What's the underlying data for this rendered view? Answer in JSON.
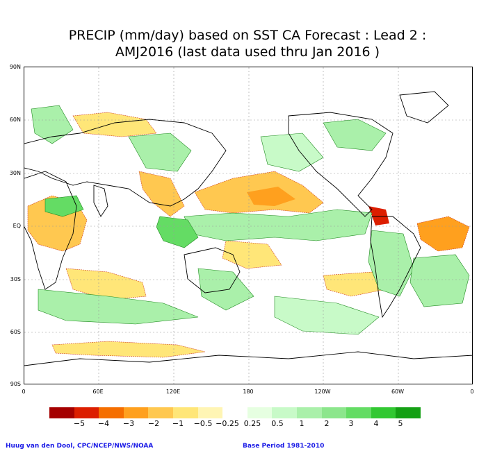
{
  "title": {
    "line1": "PRECIP (mm/day) based on SST CA Forecast : Lead 2 :",
    "line2": "AMJ2016 (last data used thru Jan 2016 )"
  },
  "axes": {
    "lat_labels": [
      "90N",
      "60N",
      "30N",
      "EQ",
      "30S",
      "60S",
      "90S"
    ],
    "lon_labels": [
      "0",
      "60E",
      "120E",
      "180",
      "120W",
      "60W",
      "0"
    ]
  },
  "legend": {
    "colors": [
      "#a50000",
      "#dc1e00",
      "#f56e00",
      "#ffa01e",
      "#ffc850",
      "#ffe678",
      "#fff5b4",
      "#ffffff",
      "#e6ffe1",
      "#c8fac8",
      "#aaf0aa",
      "#8ce68c",
      "#64dc64",
      "#32c832",
      "#14a014"
    ],
    "labels": [
      "−5",
      "−4",
      "−3",
      "−2",
      "−1",
      "−0.5",
      "−0.25",
      "0.25",
      "0.5",
      "1",
      "2",
      "3",
      "4",
      "5"
    ]
  },
  "credits": {
    "left": "Huug van den Dool, CPC/NCEP/NWS/NOAA",
    "right": "Base Period 1981-2010"
  },
  "colors": {
    "dry": "#ffc850",
    "dry_strong": "#ffa01e",
    "wet": "#aaf0aa",
    "wet_strong": "#64dc64"
  }
}
